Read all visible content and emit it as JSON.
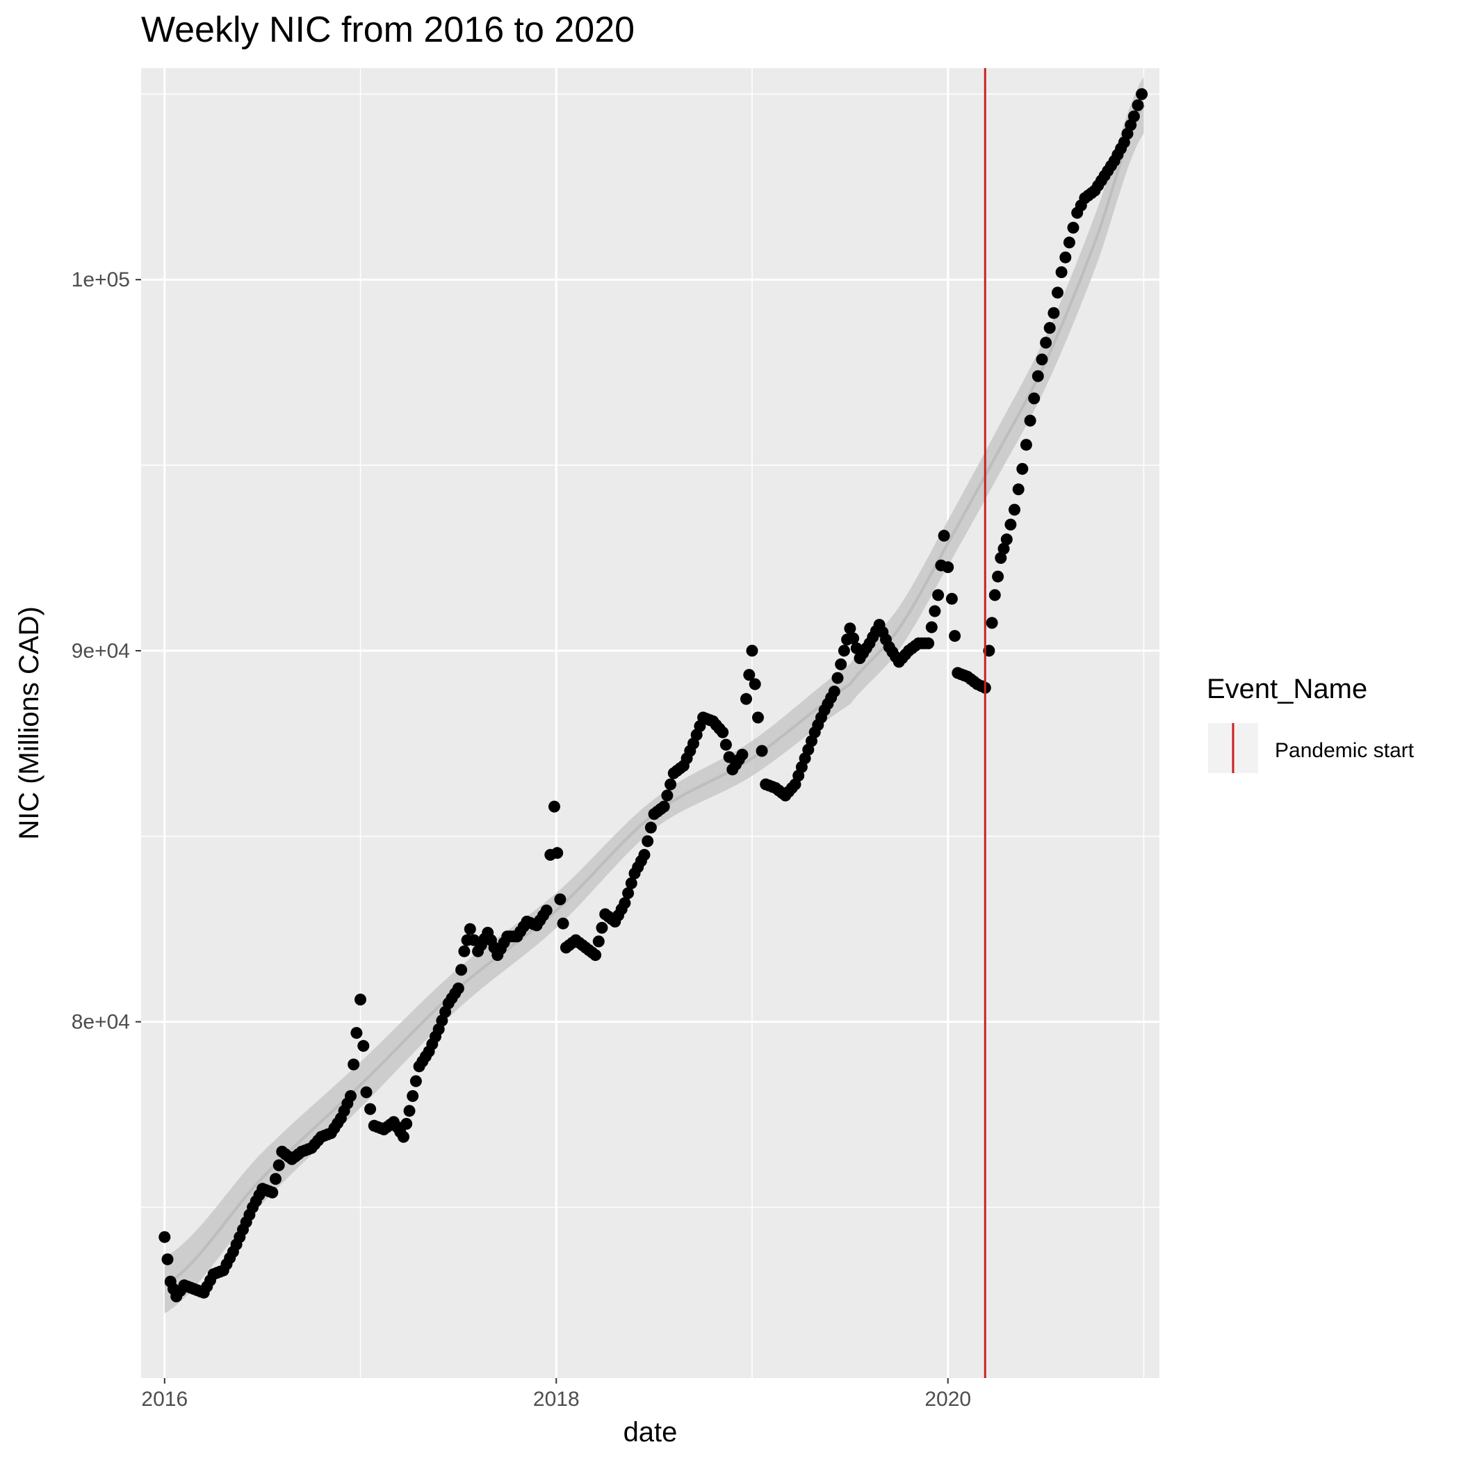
{
  "chart_data": {
    "type": "scatter",
    "title": "Weekly NIC from 2016 to 2020",
    "xlabel": "date",
    "ylabel": "NIC (Millions CAD)",
    "xlim": [
      2015.88,
      2021.08
    ],
    "ylim": [
      70400,
      105700
    ],
    "x_ticks": [
      {
        "value": 2016,
        "label": "2016"
      },
      {
        "value": 2018,
        "label": "2018"
      },
      {
        "value": 2020,
        "label": "2020"
      }
    ],
    "y_ticks": [
      {
        "value": 80000,
        "label": "8e+04"
      },
      {
        "value": 90000,
        "label": "9e+04"
      },
      {
        "value": 100000,
        "label": "1e+05"
      }
    ],
    "y_minor_ticks": [
      75000,
      85000,
      95000,
      105000
    ],
    "x_minor_ticks": [
      2017,
      2019,
      2021
    ],
    "grid": true,
    "background_color": "#ebebeb",
    "point_color": "#000000",
    "smooth_color": "#bdbdbd",
    "event_line": {
      "x": 2020.19,
      "color": "#cc1f1f",
      "name": "Pandemic start"
    },
    "legend": {
      "title": "Event_Name",
      "position": "right",
      "entries": [
        "Pandemic start"
      ]
    },
    "keypoints": [
      [
        2016.0,
        74200
      ],
      [
        2016.03,
        73000
      ],
      [
        2016.06,
        72600
      ],
      [
        2016.1,
        72900
      ],
      [
        2016.15,
        72800
      ],
      [
        2016.2,
        72700
      ],
      [
        2016.25,
        73200
      ],
      [
        2016.3,
        73300
      ],
      [
        2016.35,
        73800
      ],
      [
        2016.4,
        74400
      ],
      [
        2016.45,
        75000
      ],
      [
        2016.5,
        75500
      ],
      [
        2016.55,
        75400
      ],
      [
        2016.6,
        76500
      ],
      [
        2016.65,
        76300
      ],
      [
        2016.7,
        76500
      ],
      [
        2016.75,
        76600
      ],
      [
        2016.8,
        76900
      ],
      [
        2016.85,
        77000
      ],
      [
        2016.9,
        77400
      ],
      [
        2016.95,
        78000
      ],
      [
        2016.98,
        79700
      ],
      [
        2017.0,
        80600
      ],
      [
        2017.03,
        78100
      ],
      [
        2017.07,
        77200
      ],
      [
        2017.12,
        77100
      ],
      [
        2017.17,
        77300
      ],
      [
        2017.22,
        76900
      ],
      [
        2017.25,
        77600
      ],
      [
        2017.3,
        78800
      ],
      [
        2017.35,
        79200
      ],
      [
        2017.4,
        79800
      ],
      [
        2017.45,
        80500
      ],
      [
        2017.5,
        80900
      ],
      [
        2017.53,
        81900
      ],
      [
        2017.56,
        82500
      ],
      [
        2017.6,
        81900
      ],
      [
        2017.65,
        82400
      ],
      [
        2017.7,
        81800
      ],
      [
        2017.75,
        82300
      ],
      [
        2017.8,
        82300
      ],
      [
        2017.85,
        82700
      ],
      [
        2017.9,
        82600
      ],
      [
        2017.95,
        83000
      ],
      [
        2017.97,
        84500
      ],
      [
        2017.99,
        85800
      ],
      [
        2018.02,
        83300
      ],
      [
        2018.05,
        82000
      ],
      [
        2018.1,
        82200
      ],
      [
        2018.15,
        82000
      ],
      [
        2018.2,
        81800
      ],
      [
        2018.25,
        82900
      ],
      [
        2018.3,
        82700
      ],
      [
        2018.35,
        83200
      ],
      [
        2018.4,
        84000
      ],
      [
        2018.45,
        84500
      ],
      [
        2018.5,
        85600
      ],
      [
        2018.55,
        85800
      ],
      [
        2018.6,
        86700
      ],
      [
        2018.65,
        86900
      ],
      [
        2018.7,
        87500
      ],
      [
        2018.75,
        88200
      ],
      [
        2018.8,
        88100
      ],
      [
        2018.85,
        87800
      ],
      [
        2018.9,
        86800
      ],
      [
        2018.95,
        87200
      ],
      [
        2018.97,
        88700
      ],
      [
        2019.0,
        90000
      ],
      [
        2019.03,
        88200
      ],
      [
        2019.07,
        86400
      ],
      [
        2019.12,
        86300
      ],
      [
        2019.17,
        86100
      ],
      [
        2019.22,
        86400
      ],
      [
        2019.27,
        87100
      ],
      [
        2019.32,
        87800
      ],
      [
        2019.37,
        88400
      ],
      [
        2019.42,
        88900
      ],
      [
        2019.47,
        90000
      ],
      [
        2019.5,
        90600
      ],
      [
        2019.55,
        89800
      ],
      [
        2019.6,
        90200
      ],
      [
        2019.65,
        90700
      ],
      [
        2019.7,
        90100
      ],
      [
        2019.75,
        89700
      ],
      [
        2019.8,
        90000
      ],
      [
        2019.85,
        90200
      ],
      [
        2019.9,
        90200
      ],
      [
        2019.95,
        91500
      ],
      [
        2019.98,
        93100
      ],
      [
        2020.02,
        91400
      ],
      [
        2020.05,
        89400
      ],
      [
        2020.1,
        89300
      ],
      [
        2020.15,
        89100
      ],
      [
        2020.19,
        89000
      ],
      [
        2020.21,
        90000
      ],
      [
        2020.24,
        91500
      ],
      [
        2020.27,
        92500
      ],
      [
        2020.3,
        93000
      ],
      [
        2020.34,
        93800
      ],
      [
        2020.38,
        94900
      ],
      [
        2020.42,
        96200
      ],
      [
        2020.46,
        97400
      ],
      [
        2020.5,
        98300
      ],
      [
        2020.54,
        99100
      ],
      [
        2020.58,
        100200
      ],
      [
        2020.62,
        101000
      ],
      [
        2020.66,
        101800
      ],
      [
        2020.7,
        102200
      ],
      [
        2020.75,
        102400
      ],
      [
        2020.8,
        102800
      ],
      [
        2020.85,
        103200
      ],
      [
        2020.9,
        103700
      ],
      [
        2020.95,
        104400
      ],
      [
        2020.99,
        105000
      ]
    ],
    "smooth": [
      [
        2016.0,
        72900
      ],
      [
        2016.5,
        75800
      ],
      [
        2017.0,
        78300
      ],
      [
        2017.5,
        80900
      ],
      [
        2018.0,
        83000
      ],
      [
        2018.5,
        85600
      ],
      [
        2019.0,
        87100
      ],
      [
        2019.5,
        89100
      ],
      [
        2019.75,
        90600
      ],
      [
        2020.0,
        92900
      ],
      [
        2020.25,
        95300
      ],
      [
        2020.5,
        97800
      ],
      [
        2020.75,
        101000
      ],
      [
        2021.0,
        104700
      ]
    ],
    "smooth_band_halfwidth": 400
  }
}
